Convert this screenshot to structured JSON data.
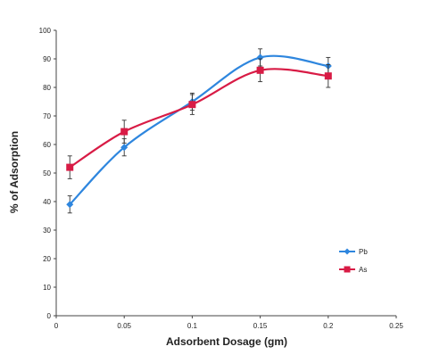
{
  "chart_data": {
    "type": "line",
    "title": "",
    "xlabel": "Adsorbent Dosage (gm)",
    "ylabel": "% of Adsorption",
    "xlim": [
      0,
      0.25
    ],
    "ylim": [
      0,
      100
    ],
    "x_ticks": [
      0,
      0.05,
      0.1,
      0.15,
      0.2,
      0.25
    ],
    "x_tick_labels": [
      "0",
      "0.05",
      "0.1",
      "0.15",
      "0.2",
      "0.25"
    ],
    "y_ticks": [
      0,
      10,
      20,
      30,
      40,
      50,
      60,
      70,
      80,
      90,
      100
    ],
    "y_tick_labels": [
      "0",
      "10",
      "20",
      "30",
      "40",
      "50",
      "60",
      "70",
      "80",
      "90",
      "100"
    ],
    "grid": false,
    "legend_position": "right",
    "x": [
      0.01,
      0.05,
      0.1,
      0.15,
      0.2
    ],
    "series": [
      {
        "name": "Pb",
        "color": "#2e86de",
        "marker": "diamond",
        "values": [
          39,
          59,
          75,
          90.5,
          87.5
        ],
        "error": [
          3,
          3,
          3,
          3,
          3
        ]
      },
      {
        "name": "As",
        "color": "#d81b45",
        "marker": "square",
        "values": [
          52,
          64.5,
          74,
          86,
          84
        ],
        "error": [
          4,
          4,
          3.5,
          4,
          4
        ]
      }
    ]
  }
}
